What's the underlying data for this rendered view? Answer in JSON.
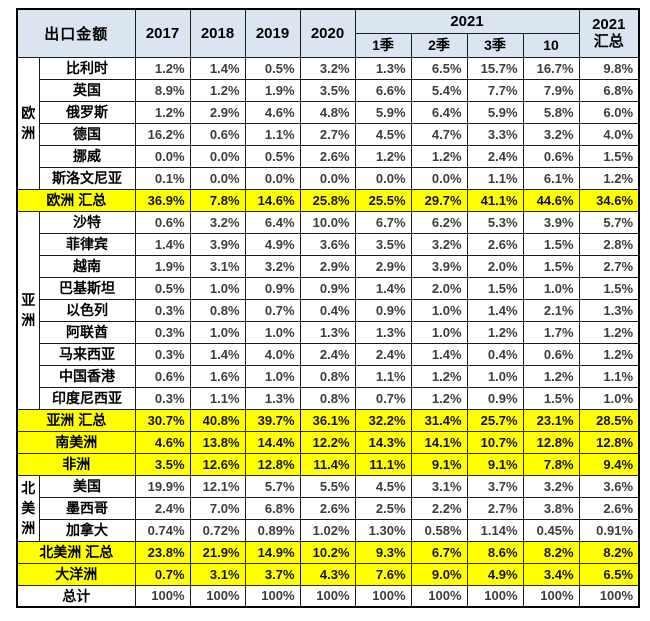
{
  "colors": {
    "header_bg": "#dbe5f1",
    "highlight_bg": "#ffff00",
    "border": "#1c1c1c",
    "label_text": "#000000",
    "value_text": "#3d3d3d"
  },
  "table": {
    "corner_label": "出口金额",
    "years": [
      "2017",
      "2018",
      "2019",
      "2020"
    ],
    "group_2021": "2021",
    "quarters": [
      "1季",
      "2季",
      "3季",
      "10"
    ],
    "total_2021": "2021\n汇总",
    "rows": [
      {
        "label": "比利时",
        "group": {
          "label": "欧\n洲",
          "rowspan": 6
        },
        "highlight": false,
        "span2": false,
        "values": [
          "1.2%",
          "1.4%",
          "0.5%",
          "3.2%",
          "1.3%",
          "6.5%",
          "15.7%",
          "16.7%",
          "9.8%"
        ]
      },
      {
        "label": "英国",
        "highlight": false,
        "span2": false,
        "values": [
          "8.9%",
          "1.2%",
          "1.9%",
          "3.5%",
          "6.6%",
          "5.4%",
          "7.7%",
          "7.9%",
          "6.8%"
        ]
      },
      {
        "label": "俄罗斯",
        "highlight": false,
        "span2": false,
        "values": [
          "1.2%",
          "2.9%",
          "4.6%",
          "4.8%",
          "5.9%",
          "6.4%",
          "5.9%",
          "5.8%",
          "6.0%"
        ]
      },
      {
        "label": "德国",
        "highlight": false,
        "span2": false,
        "values": [
          "16.2%",
          "0.6%",
          "1.1%",
          "2.7%",
          "4.5%",
          "4.7%",
          "3.3%",
          "3.2%",
          "4.0%"
        ]
      },
      {
        "label": "挪威",
        "highlight": false,
        "span2": false,
        "values": [
          "0.0%",
          "0.0%",
          "0.5%",
          "2.6%",
          "1.2%",
          "1.2%",
          "2.4%",
          "0.6%",
          "1.5%"
        ]
      },
      {
        "label": "斯洛文尼亚",
        "highlight": false,
        "span2": false,
        "values": [
          "0.1%",
          "0.0%",
          "0.0%",
          "0.0%",
          "0.0%",
          "0.0%",
          "1.1%",
          "6.1%",
          "1.2%"
        ]
      },
      {
        "label": "欧洲 汇总",
        "highlight": true,
        "span2": true,
        "values": [
          "36.9%",
          "7.8%",
          "14.6%",
          "25.8%",
          "25.5%",
          "29.7%",
          "41.1%",
          "44.6%",
          "34.6%"
        ]
      },
      {
        "label": "沙特",
        "group": {
          "label": "亚\n洲",
          "rowspan": 9
        },
        "highlight": false,
        "span2": false,
        "values": [
          "0.6%",
          "3.2%",
          "6.4%",
          "10.0%",
          "6.7%",
          "6.2%",
          "5.3%",
          "3.9%",
          "5.7%"
        ]
      },
      {
        "label": "菲律宾",
        "highlight": false,
        "span2": false,
        "values": [
          "1.4%",
          "3.9%",
          "4.9%",
          "3.6%",
          "3.5%",
          "3.2%",
          "2.6%",
          "1.5%",
          "2.8%"
        ]
      },
      {
        "label": "越南",
        "highlight": false,
        "span2": false,
        "values": [
          "1.9%",
          "3.1%",
          "3.2%",
          "2.9%",
          "2.9%",
          "3.9%",
          "2.0%",
          "1.5%",
          "2.7%"
        ]
      },
      {
        "label": "巴基斯坦",
        "highlight": false,
        "span2": false,
        "values": [
          "0.5%",
          "1.0%",
          "0.9%",
          "0.9%",
          "1.4%",
          "2.0%",
          "1.5%",
          "1.0%",
          "1.5%"
        ]
      },
      {
        "label": "以色列",
        "highlight": false,
        "span2": false,
        "values": [
          "0.3%",
          "0.8%",
          "0.7%",
          "0.4%",
          "0.9%",
          "1.0%",
          "1.4%",
          "2.1%",
          "1.3%"
        ]
      },
      {
        "label": "阿联酋",
        "highlight": false,
        "span2": false,
        "values": [
          "0.3%",
          "1.0%",
          "1.0%",
          "1.3%",
          "1.3%",
          "1.0%",
          "1.2%",
          "1.7%",
          "1.2%"
        ]
      },
      {
        "label": "马来西亚",
        "highlight": false,
        "span2": false,
        "values": [
          "0.3%",
          "1.4%",
          "4.0%",
          "2.4%",
          "2.4%",
          "1.4%",
          "0.4%",
          "0.6%",
          "1.2%"
        ]
      },
      {
        "label": "中国香港",
        "highlight": false,
        "span2": false,
        "values": [
          "0.6%",
          "1.6%",
          "1.0%",
          "0.8%",
          "1.1%",
          "1.2%",
          "1.0%",
          "1.2%",
          "1.1%"
        ]
      },
      {
        "label": "印度尼西亚",
        "highlight": false,
        "span2": false,
        "values": [
          "0.3%",
          "1.1%",
          "1.3%",
          "0.8%",
          "0.7%",
          "1.2%",
          "0.9%",
          "1.5%",
          "1.0%"
        ]
      },
      {
        "label": "亚洲 汇总",
        "highlight": true,
        "span2": true,
        "values": [
          "30.7%",
          "40.8%",
          "39.7%",
          "36.1%",
          "32.2%",
          "31.4%",
          "25.7%",
          "23.1%",
          "28.5%"
        ]
      },
      {
        "label": "南美洲",
        "highlight": true,
        "span2": true,
        "values": [
          "4.6%",
          "13.8%",
          "14.4%",
          "12.2%",
          "14.3%",
          "14.1%",
          "10.7%",
          "12.8%",
          "12.8%"
        ]
      },
      {
        "label": "非洲",
        "highlight": true,
        "span2": true,
        "values": [
          "3.5%",
          "12.6%",
          "12.8%",
          "11.4%",
          "11.1%",
          "9.1%",
          "9.1%",
          "7.8%",
          "9.4%"
        ]
      },
      {
        "label": "美国",
        "group": {
          "label": "北\n美\n洲",
          "rowspan": 3
        },
        "highlight": false,
        "span2": false,
        "values": [
          "19.9%",
          "12.1%",
          "5.7%",
          "5.5%",
          "4.5%",
          "3.1%",
          "3.7%",
          "3.2%",
          "3.6%"
        ]
      },
      {
        "label": "墨西哥",
        "highlight": false,
        "span2": false,
        "values": [
          "2.4%",
          "7.0%",
          "6.8%",
          "2.6%",
          "2.5%",
          "2.2%",
          "2.7%",
          "3.8%",
          "2.6%"
        ]
      },
      {
        "label": "加拿大",
        "highlight": false,
        "span2": false,
        "values": [
          "0.74%",
          "0.72%",
          "0.89%",
          "1.02%",
          "1.30%",
          "0.58%",
          "1.14%",
          "0.45%",
          "0.91%"
        ]
      },
      {
        "label": "北美洲 汇总",
        "highlight": true,
        "span2": true,
        "values": [
          "23.8%",
          "21.9%",
          "14.9%",
          "10.2%",
          "9.3%",
          "6.7%",
          "8.6%",
          "8.2%",
          "8.2%"
        ]
      },
      {
        "label": "大洋洲",
        "highlight": true,
        "span2": true,
        "values": [
          "0.7%",
          "3.1%",
          "3.7%",
          "4.3%",
          "7.6%",
          "9.0%",
          "4.9%",
          "3.4%",
          "6.5%"
        ]
      },
      {
        "label": "总计",
        "highlight": false,
        "span2": true,
        "values": [
          "100%",
          "100%",
          "100%",
          "100%",
          "100%",
          "100%",
          "100%",
          "100%",
          "100%"
        ]
      }
    ]
  }
}
